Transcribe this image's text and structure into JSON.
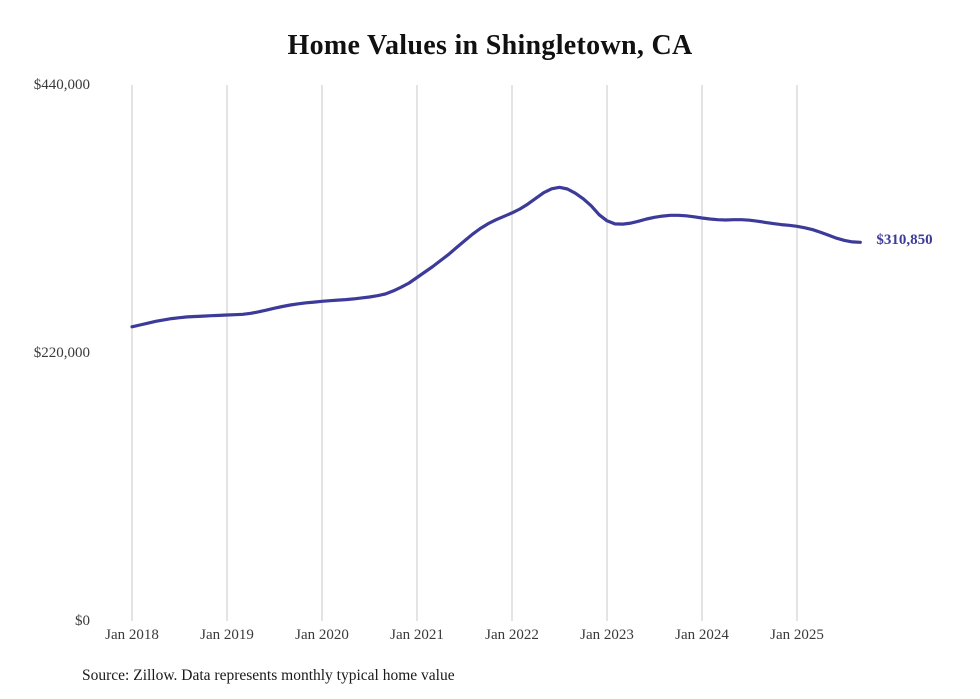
{
  "chart_data": {
    "type": "line",
    "title": "Home Values in Shingletown, CA",
    "source_note": "Source: Zillow. Data represents monthly typical home value",
    "series_name": "Monthly typical home value",
    "end_label": "$310,850",
    "end_value": 310850,
    "line_color": "#3d3b99",
    "grid_color": "#c9c9c9",
    "ylim": [
      0,
      440000
    ],
    "grid": "vertical-only",
    "legend": "none",
    "frequency": "monthly",
    "start_month": "Jan 2018",
    "end_month": "Sep 2025",
    "x_tick_labels": [
      "Jan 2018",
      "Jan 2019",
      "Jan 2020",
      "Jan 2021",
      "Jan 2022",
      "Jan 2023",
      "Jan 2024",
      "Jan 2025"
    ],
    "x_tick_month_indices": [
      0,
      12,
      24,
      36,
      48,
      60,
      72,
      84
    ],
    "y_ticks": [
      {
        "label": "$0",
        "value": 0
      },
      {
        "label": "$220,000",
        "value": 220000
      },
      {
        "label": "$440,000",
        "value": 440000
      }
    ],
    "values": [
      241500,
      243000,
      244500,
      246000,
      247200,
      248200,
      249000,
      249600,
      250000,
      250300,
      250600,
      250900,
      251200,
      251400,
      251800,
      252600,
      253800,
      255200,
      256800,
      258200,
      259400,
      260400,
      261200,
      261800,
      262400,
      262900,
      263400,
      263800,
      264400,
      265200,
      266000,
      267000,
      268400,
      271000,
      274000,
      277500,
      282000,
      286500,
      291000,
      296000,
      301000,
      306600,
      312000,
      317400,
      322200,
      326200,
      329400,
      332200,
      335000,
      338200,
      342200,
      347000,
      351600,
      354800,
      356000,
      354600,
      351200,
      346600,
      340800,
      333500,
      328500,
      326000,
      325800,
      326600,
      328200,
      330000,
      331400,
      332400,
      333000,
      333000,
      332600,
      331800,
      330800,
      330000,
      329400,
      329200,
      329400,
      329400,
      329000,
      328200,
      327200,
      326200,
      325400,
      324800,
      324000,
      322800,
      321200,
      319000,
      316600,
      314200,
      312400,
      311200,
      310850
    ]
  }
}
